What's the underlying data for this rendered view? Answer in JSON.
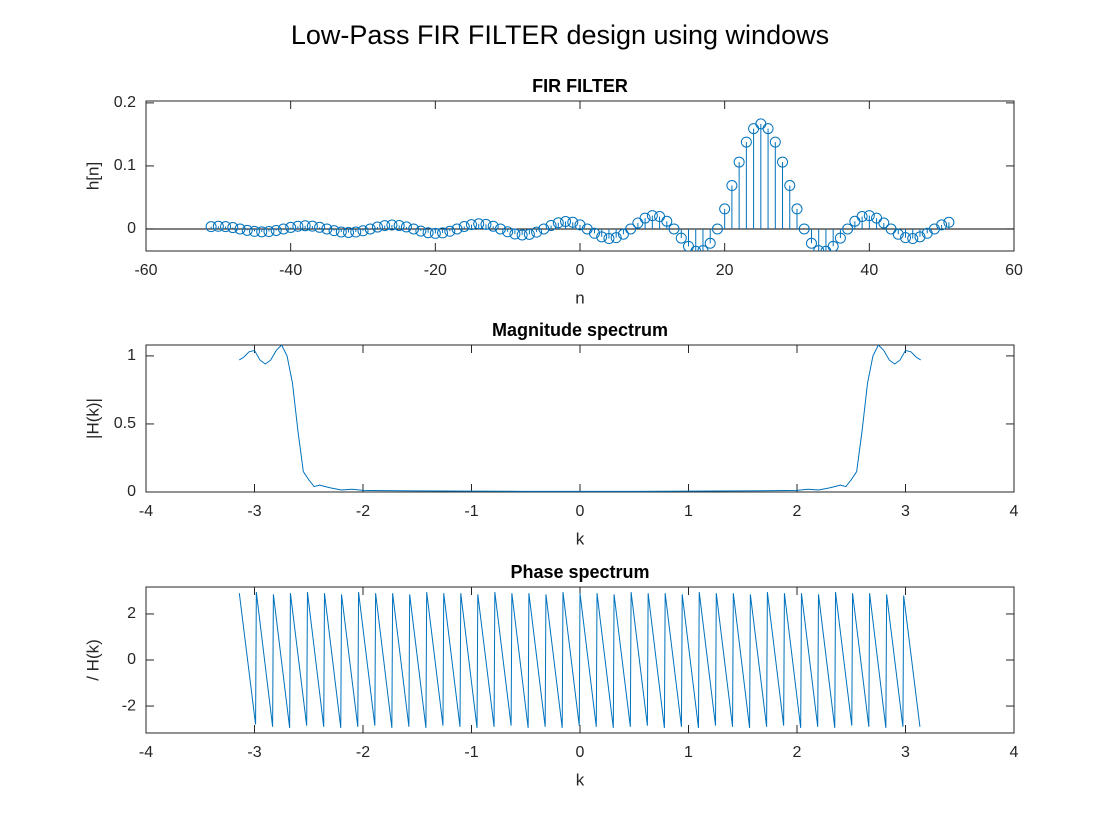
{
  "title": "Low-Pass FIR FILTER design using windows",
  "chart_data": [
    {
      "type": "stem",
      "title": "FIR FILTER",
      "xlabel": "n",
      "ylabel": "h[n]",
      "color": "#0072bd",
      "x": [
        -51,
        -50,
        -49,
        -48,
        -47,
        -46,
        -45,
        -44,
        -43,
        -42,
        -41,
        -40,
        -39,
        -38,
        -37,
        -36,
        -35,
        -34,
        -33,
        -32,
        -31,
        -30,
        -29,
        -28,
        -27,
        -26,
        -25,
        -24,
        -23,
        -22,
        -21,
        -20,
        -19,
        -18,
        -17,
        -16,
        -15,
        -14,
        -13,
        -12,
        -11,
        -10,
        -9,
        -8,
        -7,
        -6,
        -5,
        -4,
        -3,
        -2,
        -1,
        0,
        1,
        2,
        3,
        4,
        5,
        6,
        7,
        8,
        9,
        10,
        11,
        12,
        13,
        14,
        15,
        16,
        17,
        18,
        19,
        20,
        21,
        22,
        23,
        24,
        25,
        26,
        27,
        28,
        29,
        30,
        31,
        32,
        33,
        34,
        35,
        36,
        37,
        38,
        39,
        40,
        41,
        42,
        43,
        44,
        45,
        46,
        47,
        48,
        49,
        50,
        51
      ],
      "values": [
        0.0036,
        0.0042,
        0.0037,
        0.0022,
        0,
        -0.0022,
        -0.0039,
        -0.0046,
        -0.0041,
        -0.0024,
        0,
        0.0024,
        0.0043,
        0.0051,
        0.0044,
        0.0026,
        0,
        -0.0027,
        -0.0048,
        -0.0056,
        -0.0049,
        -0.0029,
        0,
        0.003,
        0.0053,
        0.0062,
        0.0055,
        0.0032,
        0,
        -0.0034,
        -0.006,
        -0.0071,
        -0.0063,
        -0.0037,
        0,
        0.0039,
        0.0069,
        0.0082,
        0.0073,
        0.0043,
        0,
        -0.0045,
        -0.0081,
        -0.0096,
        -0.0086,
        -0.0051,
        0,
        0.0055,
        0.0098,
        0.0118,
        0.0106,
        0.0064,
        0,
        -0.0069,
        -0.0125,
        -0.0152,
        -0.0138,
        -0.0084,
        0,
        0.0094,
        0.0172,
        0.0212,
        0.0197,
        0.0122,
        0,
        -0.0145,
        -0.0276,
        -0.0354,
        -0.0345,
        -0.0227,
        0,
        0.0318,
        0.0689,
        0.1061,
        0.1378,
        0.1592,
        0.1667,
        0.1592,
        0.1378,
        0.1061,
        0.0689,
        0.0318,
        0,
        -0.0227,
        -0.0345,
        -0.0354,
        -0.0276,
        -0.0145,
        0,
        0.0122,
        0.0197,
        0.0212,
        0.0172,
        0.0094,
        0,
        -0.0084,
        -0.0138,
        -0.0152,
        -0.0125,
        -0.0069,
        0,
        0.0064,
        0.0106
      ],
      "xlim": [
        -60,
        60
      ],
      "xticks": [
        -60,
        -40,
        -20,
        0,
        20,
        40,
        60
      ],
      "ylim": [
        -0.035,
        0.203
      ],
      "yticks": [
        0,
        0.1,
        0.2
      ]
    },
    {
      "type": "line",
      "title": "Magnitude spectrum",
      "xlabel": "k",
      "ylabel": "|H(k)|",
      "color": "#0072bd",
      "x": [
        -3.14,
        -3.1,
        -3.05,
        -3.0,
        -2.95,
        -2.9,
        -2.85,
        -2.8,
        -2.75,
        -2.7,
        -2.65,
        -2.6,
        -2.55,
        -2.5,
        -2.45,
        -2.4,
        -2.3,
        -2.2,
        -2.1,
        -2.0,
        -1.8,
        -1.5,
        -1.0,
        -0.5,
        0,
        0.5,
        1.0,
        1.5,
        1.8,
        2.0,
        2.1,
        2.2,
        2.3,
        2.4,
        2.45,
        2.5,
        2.55,
        2.6,
        2.65,
        2.7,
        2.75,
        2.8,
        2.85,
        2.9,
        2.95,
        3.0,
        3.05,
        3.1,
        3.14
      ],
      "values": [
        0.97,
        0.99,
        1.03,
        1.04,
        0.97,
        0.94,
        0.97,
        1.04,
        1.08,
        1.0,
        0.8,
        0.45,
        0.15,
        0.09,
        0.04,
        0.05,
        0.03,
        0.015,
        0.02,
        0.012,
        0.01,
        0.008,
        0.006,
        0.005,
        0.005,
        0.005,
        0.006,
        0.008,
        0.01,
        0.012,
        0.02,
        0.015,
        0.03,
        0.05,
        0.04,
        0.09,
        0.15,
        0.45,
        0.8,
        1.0,
        1.08,
        1.04,
        0.97,
        0.94,
        0.97,
        1.04,
        1.03,
        0.99,
        0.97
      ],
      "xlim": [
        -4,
        4
      ],
      "xticks": [
        -4,
        -3,
        -2,
        -1,
        0,
        1,
        2,
        3,
        4
      ],
      "ylim": [
        0,
        1.08
      ],
      "yticks": [
        0,
        0.5,
        1
      ]
    },
    {
      "type": "line",
      "title": "Phase spectrum",
      "xlabel": "k",
      "ylabel": "/ H(k)",
      "color": "#0072bd",
      "x": [
        -3.14,
        -2.99,
        -2.983,
        -2.833,
        -2.826,
        -2.676,
        -2.669,
        -2.519,
        -2.512,
        -2.362,
        -2.355,
        -2.205,
        -2.198,
        -2.048,
        -2.041,
        -1.891,
        -1.884,
        -1.734,
        -1.727,
        -1.577,
        -1.57,
        -1.42,
        -1.413,
        -1.263,
        -1.256,
        -1.106,
        -1.099,
        -0.949,
        -0.942,
        -0.792,
        -0.785,
        -0.635,
        -0.628,
        -0.478,
        -0.471,
        -0.321,
        -0.314,
        -0.164,
        -0.157,
        -0.007,
        0,
        0.15,
        0.157,
        0.307,
        0.314,
        0.464,
        0.471,
        0.621,
        0.628,
        0.778,
        0.785,
        0.935,
        0.942,
        1.092,
        1.099,
        1.249,
        1.256,
        1.406,
        1.413,
        1.563,
        1.57,
        1.72,
        1.727,
        1.877,
        1.884,
        2.034,
        2.041,
        2.191,
        2.198,
        2.348,
        2.355,
        2.505,
        2.512,
        2.662,
        2.669,
        2.819,
        2.826,
        2.976,
        2.983,
        3.133
      ],
      "values": [
        2.9,
        -2.8,
        2.95,
        -2.9,
        2.85,
        -2.95,
        2.9,
        -2.85,
        2.95,
        -2.9,
        2.9,
        -2.95,
        2.85,
        -2.9,
        2.95,
        -2.85,
        2.9,
        -2.95,
        2.9,
        -2.9,
        2.85,
        -2.95,
        2.95,
        -2.85,
        2.9,
        -2.9,
        2.9,
        -2.95,
        2.85,
        -2.9,
        2.95,
        -2.85,
        2.9,
        -2.95,
        2.9,
        -2.9,
        2.85,
        -2.95,
        2.95,
        -2.85,
        2.9,
        -2.9,
        2.9,
        -2.95,
        2.85,
        -2.9,
        2.95,
        -2.85,
        2.9,
        -2.95,
        2.9,
        -2.9,
        2.85,
        -2.95,
        2.95,
        -2.85,
        2.9,
        -2.9,
        2.9,
        -2.95,
        2.85,
        -2.9,
        2.95,
        -2.85,
        2.9,
        -2.95,
        2.9,
        -2.9,
        2.85,
        -2.95,
        2.95,
        -2.85,
        2.9,
        -2.9,
        2.9,
        -2.95,
        2.85,
        -2.9,
        2.8,
        -2.9
      ],
      "xlim": [
        -4,
        4
      ],
      "xticks": [
        -4,
        -3,
        -2,
        -1,
        0,
        1,
        2,
        3,
        4
      ],
      "ylim": [
        -3.17,
        3.17
      ],
      "yticks": [
        -2,
        0,
        2
      ]
    }
  ]
}
